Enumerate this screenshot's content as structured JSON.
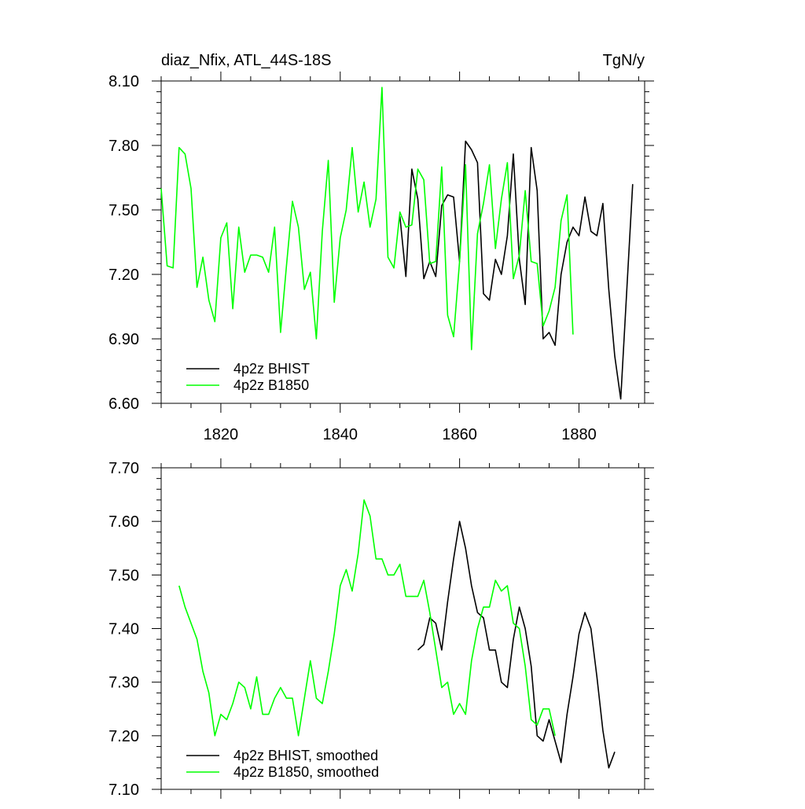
{
  "chart_data": [
    {
      "type": "line",
      "title": "diaz_Nfix, ATL_44S-18S",
      "units": "TgN/y",
      "xlim": [
        1810,
        1891
      ],
      "ylim": [
        6.6,
        8.1
      ],
      "yticks": [
        6.6,
        6.9,
        7.2,
        7.5,
        7.8,
        8.1
      ],
      "ytick_labels": [
        "6.60",
        "6.90",
        "7.20",
        "7.50",
        "7.80",
        "8.10"
      ],
      "xticks": [
        1820,
        1840,
        1860,
        1880
      ],
      "xtick_labels": [
        "1820",
        "1840",
        "1860",
        "1880"
      ],
      "legend_position": "bottom-left",
      "series": [
        {
          "name": "4p2z BHIST",
          "color": "#000000",
          "x": [
            1850,
            1851,
            1852,
            1853,
            1854,
            1855,
            1856,
            1857,
            1858,
            1859,
            1860,
            1861,
            1862,
            1863,
            1864,
            1865,
            1866,
            1867,
            1868,
            1869,
            1870,
            1871,
            1872,
            1873,
            1874,
            1875,
            1876,
            1877,
            1878,
            1879,
            1880,
            1881,
            1882,
            1883,
            1884,
            1885,
            1886,
            1887,
            1888,
            1889
          ],
          "y": [
            7.47,
            7.19,
            7.69,
            7.55,
            7.18,
            7.26,
            7.19,
            7.52,
            7.57,
            7.56,
            7.26,
            7.82,
            7.78,
            7.72,
            7.11,
            7.08,
            7.27,
            7.2,
            7.38,
            7.76,
            7.27,
            7.06,
            7.79,
            7.59,
            6.9,
            6.93,
            6.87,
            7.2,
            7.35,
            7.42,
            7.38,
            7.56,
            7.4,
            7.38,
            7.53,
            7.13,
            6.82,
            6.62,
            7.12,
            7.62
          ]
        },
        {
          "name": "4p2z B1850",
          "color": "#00ff00",
          "x": [
            1810,
            1811,
            1812,
            1813,
            1814,
            1815,
            1816,
            1817,
            1818,
            1819,
            1820,
            1821,
            1822,
            1823,
            1824,
            1825,
            1826,
            1827,
            1828,
            1829,
            1830,
            1831,
            1832,
            1833,
            1834,
            1835,
            1836,
            1837,
            1838,
            1839,
            1840,
            1841,
            1842,
            1843,
            1844,
            1845,
            1846,
            1847,
            1848,
            1849,
            1850,
            1851,
            1852,
            1853,
            1854,
            1855,
            1856,
            1857,
            1858,
            1859,
            1860,
            1861,
            1862,
            1863,
            1864,
            1865,
            1866,
            1867,
            1868,
            1869,
            1870,
            1871,
            1872,
            1873,
            1874,
            1875,
            1876,
            1877,
            1878,
            1879
          ],
          "y": [
            7.6,
            7.24,
            7.23,
            7.79,
            7.76,
            7.6,
            7.14,
            7.28,
            7.08,
            6.98,
            7.37,
            7.44,
            7.04,
            7.42,
            7.21,
            7.29,
            7.29,
            7.28,
            7.21,
            7.42,
            6.93,
            7.24,
            7.54,
            7.42,
            7.13,
            7.21,
            6.9,
            7.4,
            7.73,
            7.07,
            7.37,
            7.5,
            7.79,
            7.49,
            7.63,
            7.42,
            7.55,
            8.07,
            7.28,
            7.23,
            7.49,
            7.42,
            7.43,
            7.69,
            7.64,
            7.25,
            7.26,
            7.7,
            7.01,
            6.91,
            7.26,
            7.71,
            6.85,
            7.39,
            7.53,
            7.71,
            7.32,
            7.55,
            7.72,
            7.18,
            7.29,
            7.59,
            7.26,
            7.25,
            6.96,
            7.03,
            7.14,
            7.45,
            7.57,
            6.92
          ]
        }
      ]
    },
    {
      "type": "line",
      "xlim": [
        1810,
        1891
      ],
      "ylim": [
        7.1,
        7.7
      ],
      "yticks": [
        7.1,
        7.2,
        7.3,
        7.4,
        7.5,
        7.6,
        7.7
      ],
      "ytick_labels": [
        "7.10",
        "7.20",
        "7.30",
        "7.40",
        "7.50",
        "7.60",
        "7.70"
      ],
      "xticks": [
        1820,
        1840,
        1860,
        1880
      ],
      "legend_position": "bottom-left",
      "series": [
        {
          "name": "4p2z BHIST, smoothed",
          "color": "#000000",
          "x": [
            1853,
            1854,
            1855,
            1856,
            1857,
            1858,
            1859,
            1860,
            1861,
            1862,
            1863,
            1864,
            1865,
            1866,
            1867,
            1868,
            1869,
            1870,
            1871,
            1872,
            1873,
            1874,
            1875,
            1876,
            1877,
            1878,
            1879,
            1880,
            1881,
            1882,
            1883,
            1884,
            1885,
            1886
          ],
          "y": [
            7.36,
            7.37,
            7.42,
            7.41,
            7.36,
            7.45,
            7.53,
            7.6,
            7.55,
            7.48,
            7.43,
            7.42,
            7.36,
            7.36,
            7.3,
            7.29,
            7.38,
            7.44,
            7.4,
            7.33,
            7.2,
            7.19,
            7.23,
            7.19,
            7.15,
            7.24,
            7.31,
            7.39,
            7.43,
            7.4,
            7.31,
            7.21,
            7.14,
            7.17
          ]
        },
        {
          "name": "4p2z B1850, smoothed",
          "color": "#00ff00",
          "x": [
            1813,
            1814,
            1815,
            1816,
            1817,
            1818,
            1819,
            1820,
            1821,
            1822,
            1823,
            1824,
            1825,
            1826,
            1827,
            1828,
            1829,
            1830,
            1831,
            1832,
            1833,
            1834,
            1835,
            1836,
            1837,
            1838,
            1839,
            1840,
            1841,
            1842,
            1843,
            1844,
            1845,
            1846,
            1847,
            1848,
            1849,
            1850,
            1851,
            1852,
            1853,
            1854,
            1855,
            1856,
            1857,
            1858,
            1859,
            1860,
            1861,
            1862,
            1863,
            1864,
            1865,
            1866,
            1867,
            1868,
            1869,
            1870,
            1871,
            1872,
            1873,
            1874,
            1875,
            1876
          ],
          "y": [
            7.48,
            7.44,
            7.41,
            7.38,
            7.32,
            7.28,
            7.2,
            7.24,
            7.23,
            7.26,
            7.3,
            7.29,
            7.25,
            7.31,
            7.24,
            7.24,
            7.27,
            7.29,
            7.27,
            7.27,
            7.2,
            7.27,
            7.34,
            7.27,
            7.26,
            7.32,
            7.39,
            7.48,
            7.51,
            7.47,
            7.54,
            7.64,
            7.61,
            7.53,
            7.53,
            7.5,
            7.5,
            7.52,
            7.46,
            7.46,
            7.46,
            7.49,
            7.43,
            7.36,
            7.29,
            7.3,
            7.24,
            7.26,
            7.24,
            7.34,
            7.4,
            7.44,
            7.44,
            7.49,
            7.47,
            7.48,
            7.41,
            7.4,
            7.33,
            7.23,
            7.22,
            7.25,
            7.25,
            7.2
          ]
        }
      ]
    }
  ]
}
